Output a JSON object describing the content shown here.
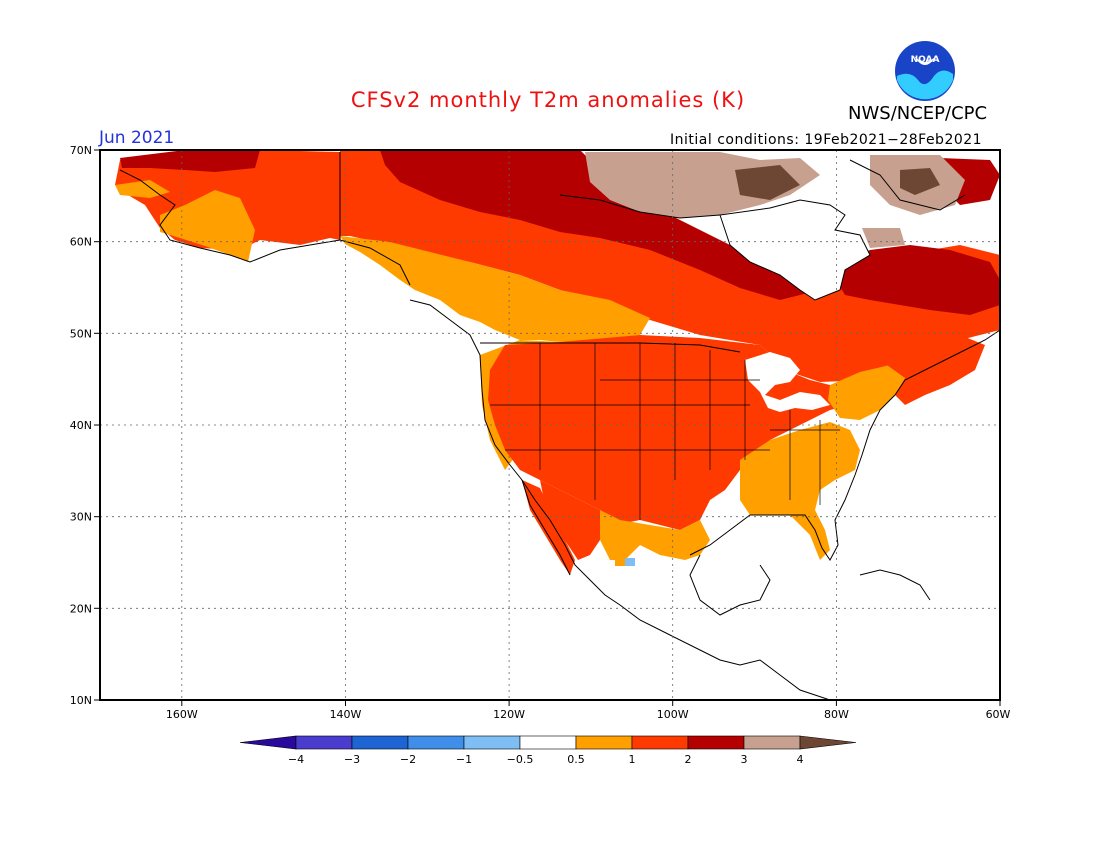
{
  "header": {
    "title": "CFSv2 monthly T2m anomalies (K)",
    "org": "NWS/NCEP/CPC",
    "month": "Jun 2021",
    "initial_conditions": "Initial conditions: 19Feb2021−28Feb2021",
    "logo_text": "NOAA"
  },
  "axes": {
    "lat_labels": [
      "70N",
      "60N",
      "50N",
      "40N",
      "30N",
      "20N",
      "10N"
    ],
    "lon_labels": [
      "160W",
      "140W",
      "120W",
      "100W",
      "80W",
      "60W"
    ]
  },
  "colorbar": {
    "tick_labels": [
      "−4",
      "−3",
      "−2",
      "−1",
      "−0.5",
      "0.5",
      "1",
      "2",
      "3",
      "4"
    ],
    "colors": [
      "#2a0a9c",
      "#4a3ccc",
      "#1e64d2",
      "#3f8eea",
      "#7fbef4",
      "#ffffff",
      "#ff9f00",
      "#ff3a00",
      "#b40000",
      "#c8a090",
      "#6e4634"
    ]
  },
  "regions": {
    "colors": {
      "light_orange": "#ff9f00",
      "orange_red": "#ff3a00",
      "dark_red": "#b40000",
      "tan": "#c8a090",
      "brown": "#6e4634",
      "light_blue": "#7fbef4"
    }
  }
}
